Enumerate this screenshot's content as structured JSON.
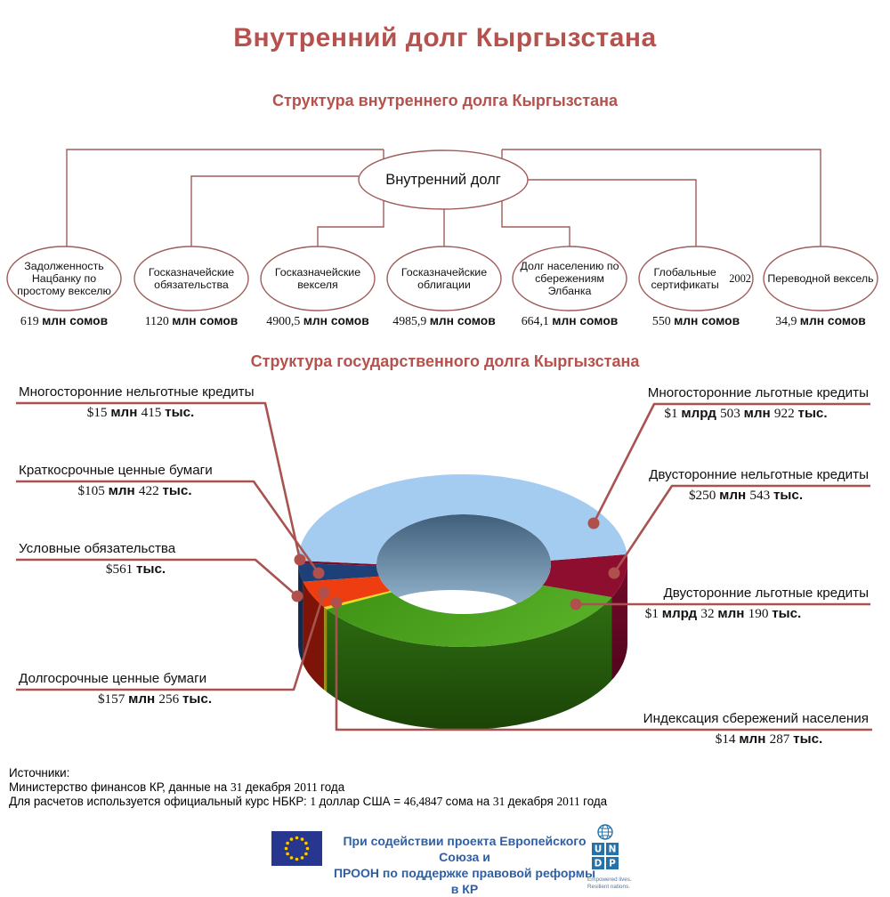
{
  "page": {
    "title": "Внутренний долг Кыргызстана"
  },
  "tree": {
    "subtitle": "Структура внутреннего долга Кыргызстана",
    "root": "Внутренний долг",
    "nodes": [
      {
        "label": "Задолженность Нацбанку по простому векселю",
        "value": "619 млн сомов"
      },
      {
        "label": "Госказначейские обязательства",
        "value": "1120 млн сомов"
      },
      {
        "label": "Госказначейские векселя",
        "value": "4900,5 млн сомов"
      },
      {
        "label": "Госказначейские облигации",
        "value": "4985,9 млн сомов"
      },
      {
        "label": "Долг населению по сбережениям Элбанка",
        "value": "664,1 млн сомов"
      },
      {
        "label": "Глобальные сертификаты 2002",
        "value": "550 млн сомов"
      },
      {
        "label": "Переводной вексель",
        "value": "34,9 млн сомов"
      }
    ]
  },
  "chart_data": {
    "type": "pie",
    "title": "Структура государственного долга Кыргызстана",
    "unit": "доллары США",
    "hole": true,
    "legend_position": "callouts",
    "slices": [
      {
        "name": "Многосторонние нельготные кредиты",
        "value_usd_mln": 15.415,
        "display": "$15 млн 415 тыс.",
        "top": "#7c0c29",
        "side": "#4d0818"
      },
      {
        "name": "Краткосрочные ценные бумаги",
        "value_usd_mln": 105.422,
        "display": "$105 млн 422 тыс.",
        "top": "#1c4077",
        "side": "#13294e"
      },
      {
        "name": "Условные обязательства",
        "value_usd_mln": 0.561,
        "display": "$561 тыс.",
        "top": "#0f3050",
        "side": "#0a2038"
      },
      {
        "name": "Долгосрочные ценные бумаги",
        "value_usd_mln": 157.256,
        "display": "$157 млн 256 тыс.",
        "top": "#ee3d10",
        "side": "#7e1407"
      },
      {
        "name": "Индексация сбережений населения",
        "value_usd_mln": 14.287,
        "display": "$14 млн 287 тыс.",
        "top": "#f0dc1e",
        "side": "#968c10"
      },
      {
        "name": "Двусторонние льготные кредиты",
        "value_usd_mln": 1032.19,
        "display": "$1 млрд 32 млн 190 тыс.",
        "top": "url(#gGreenTop)",
        "side": "url(#gGreenSide)"
      },
      {
        "name": "Двусторонние нельготные кредиты",
        "value_usd_mln": 250.543,
        "display": "$250 млн 543 тыс.",
        "top": "#8d0e2f",
        "side": "url(#gMaroonSide)"
      },
      {
        "name": "Многосторонние льготные кредиты",
        "value_usd_mln": 1503.922,
        "display": "$1 млрд 503 млн 922 тыс.",
        "top": "#a4cbf0",
        "side": "#6d97c4"
      }
    ],
    "colors": {
      "accent_red": "#b5524e",
      "callout_line": "#a85350",
      "tree_stroke": "#9e5d5b"
    }
  },
  "sources": {
    "heading": "Источники:",
    "line1": "Министерство финансов КР, данные на 31 декабря 2011 года",
    "line2": "Для расчетов используется официальный курс НБКР: 1 доллар США = 46,4847 сома на 31 декабря 2011 года"
  },
  "footer": {
    "eu_text_line1": "При содействии проекта Европейского Союза и",
    "eu_text_line2": "ПРООН по поддержке правовой реформы в КР",
    "undp_letters": [
      "U",
      "N",
      "D",
      "P"
    ],
    "undp_tagline_line1": "Empowered lives.",
    "undp_tagline_line2": "Resilient nations.",
    "eu_flag_color": "#27368f",
    "eu_star_color": "#ffcc00",
    "undp_blue": "#2571a9"
  }
}
